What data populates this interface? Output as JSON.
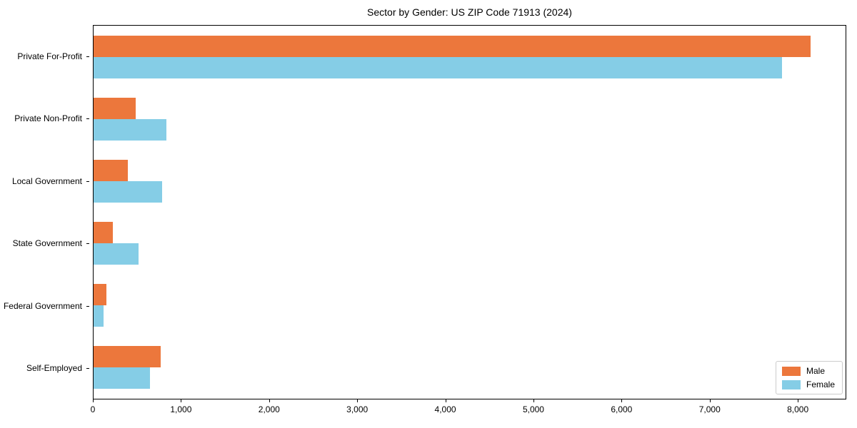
{
  "chart_data": {
    "type": "bar",
    "orientation": "horizontal",
    "title": "Sector by Gender: US ZIP Code 71913 (2024)",
    "categories": [
      "Private For-Profit",
      "Private Non-Profit",
      "Local Government",
      "State Government",
      "Federal Government",
      "Self-Employed"
    ],
    "series": [
      {
        "name": "Male",
        "color": "#EC773C",
        "values": [
          8150,
          480,
          390,
          220,
          145,
          760
        ]
      },
      {
        "name": "Female",
        "color": "#85CDE6",
        "values": [
          7830,
          830,
          780,
          510,
          110,
          640
        ]
      }
    ],
    "xlim": [
      0,
      8550
    ],
    "xticks": {
      "values": [
        0,
        1000,
        2000,
        3000,
        4000,
        5000,
        6000,
        7000,
        8000
      ],
      "labels": [
        "0",
        "1,000",
        "2,000",
        "3,000",
        "4,000",
        "5,000",
        "6,000",
        "7,000",
        "8,000"
      ]
    },
    "grid": false,
    "background": "#ffffff",
    "legend": {
      "position": "lower right"
    }
  }
}
